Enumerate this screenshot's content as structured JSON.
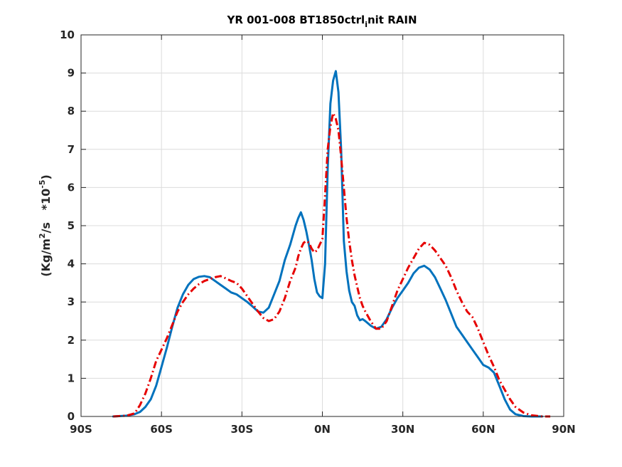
{
  "chart_data": {
    "type": "line",
    "title": "YR 001-008 BT1850ctrl_init RAIN",
    "title_parts": {
      "main": "YR 001-008 BT1850ctrl",
      "subscript": "i",
      "rest": "nit RAIN"
    },
    "xlabel": "",
    "ylabel": "(Kg/m2/s *10-5)",
    "ylabel_parts": {
      "p1": "(Kg/m",
      "sup1": "2",
      "p2": "/s   *10",
      "sup2": "-5",
      "p3": ")"
    },
    "xlim": [
      -90,
      90
    ],
    "ylim": [
      0,
      10
    ],
    "xticks": [
      -90,
      -60,
      -30,
      0,
      30,
      60,
      90
    ],
    "xtick_labels": [
      "90S",
      "60S",
      "30S",
      "0N",
      "30N",
      "60N",
      "90N"
    ],
    "yticks": [
      0,
      1,
      2,
      3,
      4,
      5,
      6,
      7,
      8,
      9,
      10
    ],
    "ytick_labels": [
      "0",
      "1",
      "2",
      "3",
      "4",
      "5",
      "6",
      "7",
      "8",
      "9",
      "10"
    ],
    "grid": true,
    "legend": "none",
    "series": [
      {
        "style": "solid",
        "color": "#0072bd",
        "x": [
          -78,
          -73,
          -70,
          -68,
          -66,
          -64,
          -62,
          -60,
          -58,
          -56,
          -54,
          -52,
          -50,
          -48,
          -46,
          -44,
          -42,
          -40,
          -38,
          -36,
          -34,
          -32,
          -30,
          -28,
          -26,
          -24,
          -22,
          -20,
          -18,
          -16,
          -14,
          -12,
          -10,
          -9,
          -8,
          -7,
          -6,
          -5,
          -4,
          -3,
          -2,
          -1,
          0,
          1,
          2,
          3,
          4,
          5,
          6,
          7,
          8,
          9,
          10,
          11,
          12,
          13,
          14,
          15,
          16,
          18,
          20,
          22,
          24,
          26,
          28,
          30,
          32,
          34,
          36,
          38,
          40,
          42,
          44,
          46,
          48,
          50,
          52,
          54,
          56,
          58,
          60,
          62,
          64,
          66,
          68,
          70,
          72,
          75,
          78,
          82
        ],
        "y": [
          0,
          0.02,
          0.06,
          0.12,
          0.25,
          0.45,
          0.8,
          1.3,
          1.8,
          2.35,
          2.85,
          3.2,
          3.45,
          3.6,
          3.66,
          3.68,
          3.65,
          3.55,
          3.45,
          3.35,
          3.25,
          3.2,
          3.1,
          3.0,
          2.88,
          2.75,
          2.72,
          2.85,
          3.2,
          3.55,
          4.1,
          4.5,
          5.0,
          5.2,
          5.35,
          5.15,
          4.85,
          4.5,
          4.1,
          3.6,
          3.25,
          3.15,
          3.1,
          4.0,
          6.5,
          8.2,
          8.8,
          9.05,
          8.5,
          7.0,
          4.6,
          3.8,
          3.3,
          3.0,
          2.9,
          2.65,
          2.52,
          2.55,
          2.5,
          2.38,
          2.3,
          2.35,
          2.55,
          2.85,
          3.1,
          3.3,
          3.5,
          3.75,
          3.9,
          3.95,
          3.85,
          3.65,
          3.35,
          3.05,
          2.7,
          2.35,
          2.15,
          1.95,
          1.75,
          1.55,
          1.35,
          1.28,
          1.15,
          0.8,
          0.45,
          0.18,
          0.06,
          0.01,
          0,
          0
        ]
      },
      {
        "style": "dashdot",
        "color": "#e60000",
        "x": [
          -78,
          -73,
          -70,
          -68,
          -66,
          -64,
          -62,
          -60,
          -58,
          -56,
          -54,
          -52,
          -50,
          -48,
          -46,
          -44,
          -42,
          -40,
          -38,
          -36,
          -34,
          -32,
          -30,
          -28,
          -26,
          -24,
          -22,
          -20,
          -18,
          -16,
          -14,
          -12,
          -10,
          -9,
          -8,
          -7,
          -6,
          -5,
          -4,
          -3,
          -2,
          -1,
          0,
          1,
          2,
          3,
          4,
          5,
          6,
          7,
          8,
          9,
          10,
          11,
          12,
          13,
          14,
          15,
          16,
          18,
          20,
          22,
          24,
          26,
          28,
          30,
          32,
          34,
          36,
          38,
          40,
          42,
          44,
          46,
          48,
          50,
          52,
          54,
          56,
          58,
          60,
          62,
          64,
          66,
          68,
          70,
          72,
          75,
          78,
          82,
          85
        ],
        "y": [
          0,
          0.02,
          0.08,
          0.3,
          0.6,
          1.0,
          1.45,
          1.75,
          2.05,
          2.4,
          2.75,
          3.0,
          3.2,
          3.35,
          3.47,
          3.55,
          3.6,
          3.65,
          3.68,
          3.62,
          3.55,
          3.5,
          3.35,
          3.15,
          2.95,
          2.75,
          2.58,
          2.5,
          2.55,
          2.75,
          3.1,
          3.55,
          3.9,
          4.2,
          4.4,
          4.55,
          4.6,
          4.55,
          4.4,
          4.3,
          4.35,
          4.5,
          4.65,
          5.8,
          7.0,
          7.6,
          7.95,
          7.8,
          7.5,
          6.8,
          6.0,
          5.2,
          4.6,
          4.1,
          3.7,
          3.4,
          3.1,
          2.9,
          2.75,
          2.5,
          2.3,
          2.3,
          2.5,
          2.9,
          3.3,
          3.6,
          3.9,
          4.15,
          4.4,
          4.55,
          4.5,
          4.35,
          4.15,
          3.95,
          3.65,
          3.3,
          3.0,
          2.75,
          2.6,
          2.3,
          1.95,
          1.6,
          1.3,
          0.95,
          0.7,
          0.45,
          0.25,
          0.1,
          0.03,
          0,
          0
        ]
      }
    ]
  }
}
